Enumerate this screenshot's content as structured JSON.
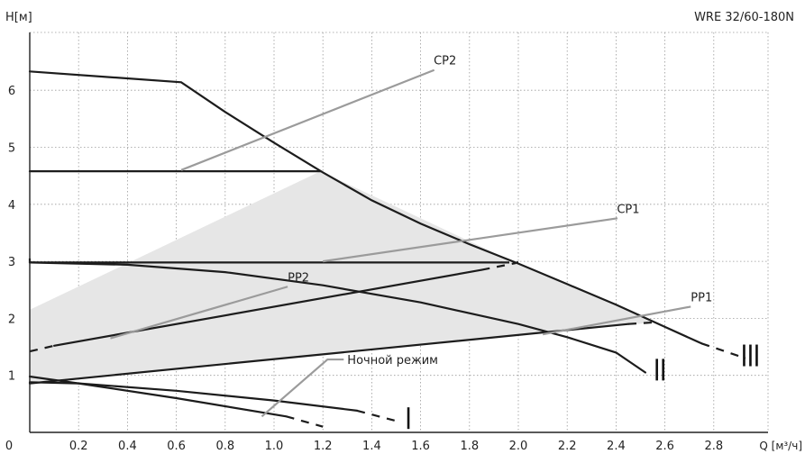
{
  "chart_data": {
    "type": "line",
    "title": "WRE 32/60-180N",
    "ylabel": "H[м]",
    "xlabel": "Q [м³/ч]",
    "xlim": [
      0,
      3.0
    ],
    "ylim": [
      0,
      7.0
    ],
    "x_ticks": [
      "0",
      "0.2",
      "0.4",
      "0.6",
      "0.8",
      "1.0",
      "1.2",
      "1.4",
      "1.6",
      "1.8",
      "2.0",
      "2.2",
      "2.4",
      "2.6",
      "2.8"
    ],
    "y_ticks": [
      "1",
      "2",
      "3",
      "4",
      "5",
      "6"
    ],
    "x_tick_values": [
      0,
      0.2,
      0.4,
      0.6,
      0.8,
      1.0,
      1.2,
      1.4,
      1.6,
      1.8,
      2.0,
      2.2,
      2.4,
      2.6,
      2.8
    ],
    "y_tick_values": [
      1,
      2,
      3,
      4,
      5,
      6
    ],
    "grid": true,
    "operating_area": [
      [
        0,
        2.15
      ],
      [
        1.19,
        4.58
      ],
      [
        1.99,
        2.97
      ],
      [
        2.56,
        1.93
      ],
      [
        0,
        0.88
      ]
    ],
    "series": [
      {
        "id": "speed-III",
        "points": [
          [
            0,
            6.33
          ],
          [
            0.62,
            6.14
          ],
          [
            0.8,
            5.62
          ],
          [
            1.0,
            5.08
          ],
          [
            1.2,
            4.56
          ],
          [
            1.4,
            4.07
          ],
          [
            1.6,
            3.66
          ],
          [
            1.8,
            3.3
          ],
          [
            2.0,
            2.96
          ],
          [
            2.2,
            2.6
          ],
          [
            2.4,
            2.24
          ],
          [
            2.6,
            1.85
          ],
          [
            2.75,
            1.56
          ]
        ],
        "dashed_to": [
          2.93,
          1.3
        ]
      },
      {
        "id": "speed-II",
        "points": [
          [
            0,
            2.98
          ],
          [
            0.4,
            2.94
          ],
          [
            0.8,
            2.81
          ],
          [
            1.2,
            2.58
          ],
          [
            1.6,
            2.28
          ],
          [
            2.0,
            1.9
          ],
          [
            2.2,
            1.67
          ],
          [
            2.4,
            1.4
          ],
          [
            2.52,
            1.05
          ]
        ],
        "dashed_from": [
          0,
          3.05
        ]
      },
      {
        "id": "speed-I",
        "points": [
          [
            0,
            0.88
          ],
          [
            0.2,
            0.86
          ],
          [
            0.6,
            0.73
          ],
          [
            1.0,
            0.56
          ],
          [
            1.34,
            0.38
          ]
        ],
        "dashed_to": [
          1.5,
          0.2
        ]
      },
      {
        "id": "night-mode",
        "points": [
          [
            0,
            0.98
          ],
          [
            0.2,
            0.86
          ],
          [
            0.6,
            0.6
          ],
          [
            1.05,
            0.28
          ]
        ],
        "dashed_to": [
          1.2,
          0.1
        ]
      },
      {
        "id": "CP2",
        "points": [
          [
            0,
            4.58
          ],
          [
            1.19,
            4.58
          ]
        ]
      },
      {
        "id": "CP1",
        "points": [
          [
            0,
            2.98
          ],
          [
            1.93,
            2.98
          ]
        ],
        "dashed_to": [
          2.0,
          2.98
        ]
      },
      {
        "id": "PP2",
        "points": [
          [
            0.1,
            1.52
          ],
          [
            1.85,
            2.85
          ]
        ],
        "dashed_from": [
          0,
          1.42
        ],
        "dashed_to": [
          1.99,
          2.97
        ]
      },
      {
        "id": "PP1",
        "points": [
          [
            0,
            0.86
          ],
          [
            2.45,
            1.9
          ]
        ],
        "dashed_to": [
          2.56,
          1.93
        ]
      }
    ],
    "annotations": [
      {
        "text": "CP2",
        "label_at": [
          1.7,
          6.45
        ],
        "points_to": [
          0.62,
          4.6
        ]
      },
      {
        "text": "CP1",
        "label_at": [
          2.45,
          3.85
        ],
        "points_to": [
          1.2,
          3.0
        ]
      },
      {
        "text": "PP2",
        "label_at": [
          1.1,
          2.65
        ],
        "points_to": [
          0.33,
          1.65
        ]
      },
      {
        "text": "PP1",
        "label_at": [
          2.75,
          2.3
        ],
        "points_to": [
          2.1,
          1.72
        ]
      },
      {
        "text": "Ночной режим",
        "label_at": [
          1.3,
          1.2
        ],
        "points_to": [
          0.95,
          0.28
        ]
      }
    ],
    "speed_labels": [
      {
        "text": "III",
        "at": [
          2.95,
          1.35
        ]
      },
      {
        "text": "II",
        "at": [
          2.58,
          1.1
        ]
      },
      {
        "text": "I",
        "at": [
          1.55,
          0.25
        ]
      }
    ]
  }
}
